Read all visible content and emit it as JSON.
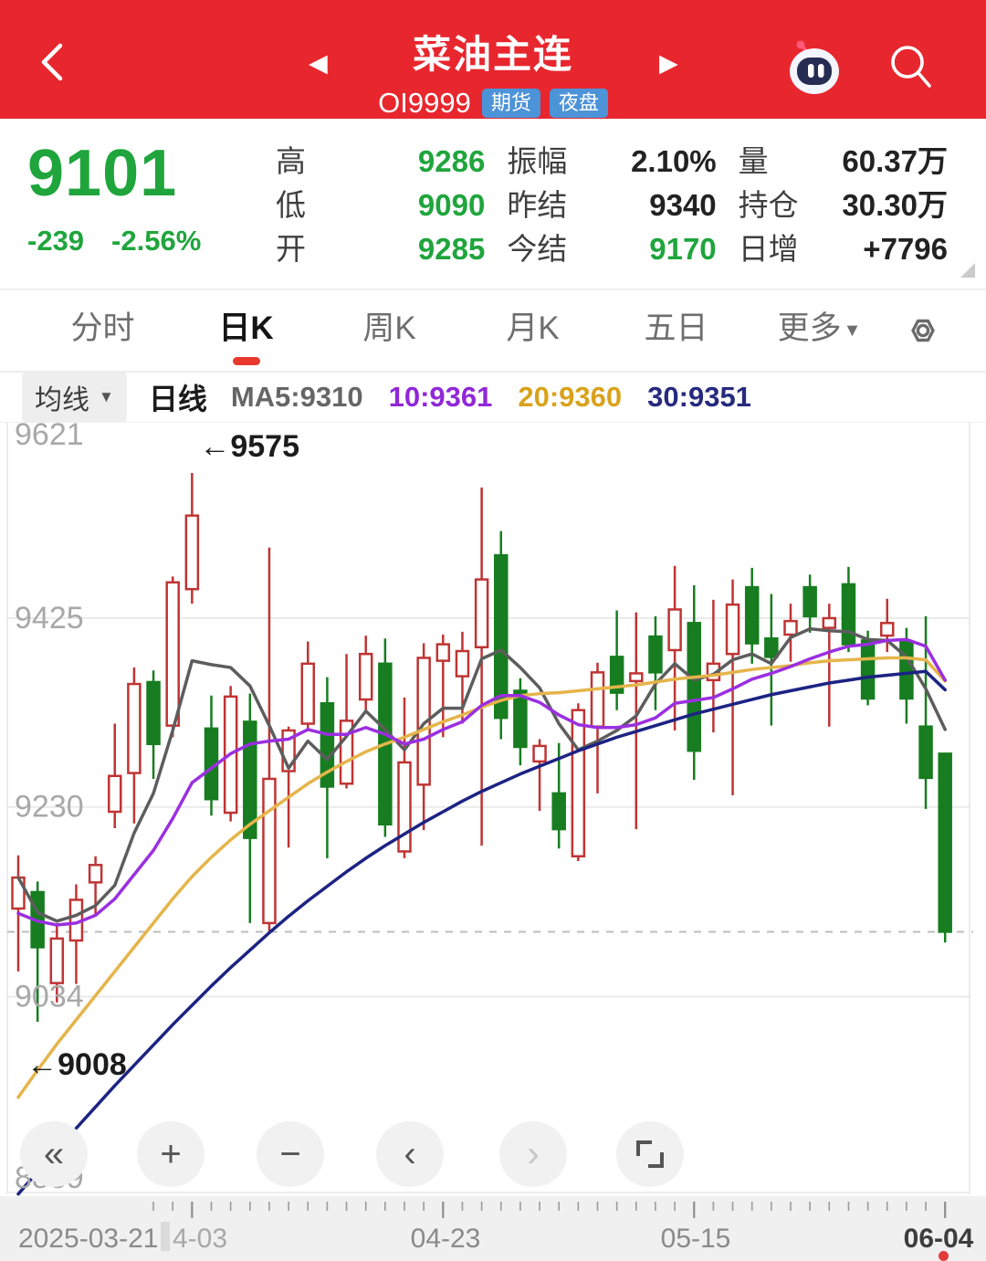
{
  "header": {
    "title": "菜油主连",
    "code": "OI9999",
    "badges": [
      "期货",
      "夜盘"
    ],
    "prev_icon": "◀",
    "next_icon": "▶",
    "bg_color": "#e8262e"
  },
  "quote": {
    "last": "9101",
    "change": "-239",
    "change_pct": "-2.56%",
    "up_down_color": "#1fa53c",
    "columns": [
      {
        "rows": [
          {
            "label": "高",
            "value": "9286",
            "color": "green"
          },
          {
            "label": "低",
            "value": "9090",
            "color": "green"
          },
          {
            "label": "开",
            "value": "9285",
            "color": "green"
          }
        ]
      },
      {
        "rows": [
          {
            "label": "振幅",
            "value": "2.10%",
            "color": "dark"
          },
          {
            "label": "昨结",
            "value": "9340",
            "color": "dark"
          },
          {
            "label": "今结",
            "value": "9170",
            "color": "green"
          }
        ]
      },
      {
        "rows": [
          {
            "label": "量",
            "value": "60.37万",
            "color": "dark"
          },
          {
            "label": "持仓",
            "value": "30.30万",
            "color": "dark"
          },
          {
            "label": "日增",
            "value": "+7796",
            "color": "dark"
          }
        ]
      }
    ]
  },
  "tabs": [
    {
      "label": "分时",
      "active": false
    },
    {
      "label": "日K",
      "active": true
    },
    {
      "label": "周K",
      "active": false
    },
    {
      "label": "月K",
      "active": false
    },
    {
      "label": "五日",
      "active": false
    },
    {
      "label": "更多",
      "active": false,
      "caret": true
    }
  ],
  "ma_bar": {
    "selector": "均线",
    "period": "日线",
    "items": [
      {
        "label": "MA5:9310",
        "color": "#666666"
      },
      {
        "label": "10:9361",
        "color": "#9127d8"
      },
      {
        "label": "20:9360",
        "color": "#d9a21b"
      },
      {
        "label": "30:9351",
        "color": "#262a7e"
      }
    ]
  },
  "chart_data": {
    "type": "candlestick",
    "title": "菜油主连 OI9999 日K",
    "up_color": "#bf3434",
    "down_color": "#177d20",
    "y_labels": [
      9621,
      9425,
      9230,
      9034,
      8839
    ],
    "y_gridlines": [
      9425,
      9230,
      9034
    ],
    "dashed_price": 9101,
    "annotations": [
      {
        "text": "←9575",
        "anchor_index": 9,
        "anchor": "high"
      },
      {
        "text": "←9008",
        "anchor_index": 1,
        "anchor": "low"
      }
    ],
    "candles": [
      [
        9125,
        9180,
        9060,
        9157
      ],
      [
        9142,
        9153,
        9008,
        9085
      ],
      [
        9048,
        9110,
        9028,
        9094
      ],
      [
        9092,
        9150,
        9047,
        9134
      ],
      [
        9152,
        9179,
        9118,
        9170
      ],
      [
        9225,
        9316,
        9208,
        9262
      ],
      [
        9265,
        9374,
        9213,
        9357
      ],
      [
        9359,
        9371,
        9259,
        9295
      ],
      [
        9314,
        9468,
        9302,
        9462
      ],
      [
        9455,
        9575,
        9440,
        9531
      ],
      [
        9311,
        9345,
        9221,
        9238
      ],
      [
        9224,
        9355,
        9215,
        9344
      ],
      [
        9318,
        9347,
        9110,
        9198
      ],
      [
        9110,
        9498,
        9100,
        9259
      ],
      [
        9267,
        9313,
        9188,
        9309
      ],
      [
        9316,
        9401,
        9308,
        9378
      ],
      [
        9337,
        9364,
        9177,
        9251
      ],
      [
        9254,
        9388,
        9249,
        9319
      ],
      [
        9341,
        9407,
        9330,
        9388
      ],
      [
        9378,
        9404,
        9199,
        9212
      ],
      [
        9184,
        9343,
        9177,
        9276
      ],
      [
        9253,
        9399,
        9206,
        9384
      ],
      [
        9381,
        9408,
        9302,
        9398
      ],
      [
        9365,
        9411,
        9316,
        9391
      ],
      [
        9395,
        9560,
        9190,
        9465
      ],
      [
        9490,
        9515,
        9300,
        9322
      ],
      [
        9350,
        9363,
        9273,
        9292
      ],
      [
        9277,
        9300,
        9226,
        9293
      ],
      [
        9244,
        9296,
        9187,
        9207
      ],
      [
        9179,
        9337,
        9174,
        9330
      ],
      [
        9313,
        9379,
        9244,
        9369
      ],
      [
        9385,
        9433,
        9330,
        9348
      ],
      [
        9360,
        9431,
        9207,
        9368
      ],
      [
        9406,
        9427,
        9330,
        9369
      ],
      [
        9392,
        9479,
        9309,
        9434
      ],
      [
        9420,
        9459,
        9258,
        9288
      ],
      [
        9361,
        9444,
        9307,
        9378
      ],
      [
        9388,
        9465,
        9242,
        9439
      ],
      [
        9457,
        9477,
        9378,
        9399
      ],
      [
        9404,
        9450,
        9314,
        9385
      ],
      [
        9408,
        9440,
        9380,
        9422
      ],
      [
        9457,
        9470,
        9410,
        9427
      ],
      [
        9415,
        9440,
        9313,
        9425
      ],
      [
        9460,
        9478,
        9390,
        9398
      ],
      [
        9402,
        9412,
        9335,
        9342
      ],
      [
        9407,
        9445,
        9390,
        9420
      ],
      [
        9401,
        9415,
        9316,
        9342
      ],
      [
        9313,
        9427,
        9228,
        9260
      ],
      [
        9285,
        9286,
        9090,
        9101
      ]
    ],
    "ma_series": [
      {
        "name": "MA5",
        "color": "#5d5d5d",
        "values": [
          9157,
          9121,
          9112,
          9118,
          9128,
          9149,
          9203,
          9244,
          9309,
          9381,
          9377,
          9374,
          9355,
          9314,
          9270,
          9298,
          9279,
          9303,
          9329,
          9310,
          9289,
          9316,
          9332,
          9332,
          9383,
          9392,
          9374,
          9353,
          9316,
          9289,
          9298,
          9309,
          9324,
          9357,
          9378,
          9361,
          9367,
          9382,
          9388,
          9378,
          9405,
          9414,
          9412,
          9411,
          9403,
          9402,
          9385,
          9352,
          9310
        ]
      },
      {
        "name": "MA10",
        "color": "#9a2fe0",
        "values": [
          9120,
          9112,
          9108,
          9110,
          9118,
          9135,
          9160,
          9185,
          9218,
          9255,
          9270,
          9285,
          9295,
          9298,
          9300,
          9310,
          9305,
          9305,
          9312,
          9305,
          9295,
          9300,
          9310,
          9318,
          9335,
          9345,
          9345,
          9338,
          9325,
          9315,
          9312,
          9312,
          9315,
          9322,
          9337,
          9340,
          9343,
          9352,
          9362,
          9368,
          9375,
          9383,
          9390,
          9396,
          9398,
          9402,
          9403,
          9396,
          9361
        ]
      },
      {
        "name": "MA20",
        "color": "#e5b54a",
        "values": [
          8930,
          8958,
          8985,
          9010,
          9035,
          9060,
          9085,
          9110,
          9135,
          9158,
          9178,
          9196,
          9212,
          9226,
          9240,
          9254,
          9266,
          9277,
          9287,
          9295,
          9302,
          9310,
          9318,
          9325,
          9333,
          9340,
          9345,
          9347,
          9348,
          9350,
          9352,
          9354,
          9356,
          9359,
          9362,
          9364,
          9366,
          9369,
          9372,
          9374,
          9376,
          9379,
          9381,
          9382,
          9383,
          9384,
          9384,
          9382,
          9360
        ]
      },
      {
        "name": "MA30",
        "color": "#1c2383",
        "values": [
          8830,
          8853,
          8876,
          8898,
          8920,
          8942,
          8963,
          8984,
          9005,
          9025,
          9045,
          9064,
          9082,
          9100,
          9117,
          9133,
          9148,
          9163,
          9177,
          9190,
          9202,
          9214,
          9225,
          9236,
          9246,
          9255,
          9264,
          9272,
          9280,
          9288,
          9295,
          9302,
          9308,
          9314,
          9320,
          9326,
          9331,
          9336,
          9341,
          9346,
          9350,
          9354,
          9358,
          9361,
          9364,
          9366,
          9368,
          9370,
          9351
        ]
      }
    ],
    "x_labels": [
      {
        "text": "2025-03-21"
      },
      {
        "text": "4-03",
        "faded": true
      },
      {
        "text": "04-23"
      },
      {
        "text": "05-15"
      },
      {
        "text": "06-04",
        "emphasis": true
      }
    ],
    "long_tick_indices": [
      9,
      22,
      35,
      48
    ]
  },
  "controls": [
    {
      "name": "rewind",
      "glyph": "«"
    },
    {
      "name": "zoom-in",
      "glyph": "+"
    },
    {
      "name": "zoom-out",
      "glyph": "−"
    },
    {
      "name": "pan-left",
      "glyph": "‹"
    },
    {
      "name": "pan-right",
      "glyph": "›",
      "disabled": true
    },
    {
      "name": "fullscreen",
      "glyph": ""
    }
  ]
}
